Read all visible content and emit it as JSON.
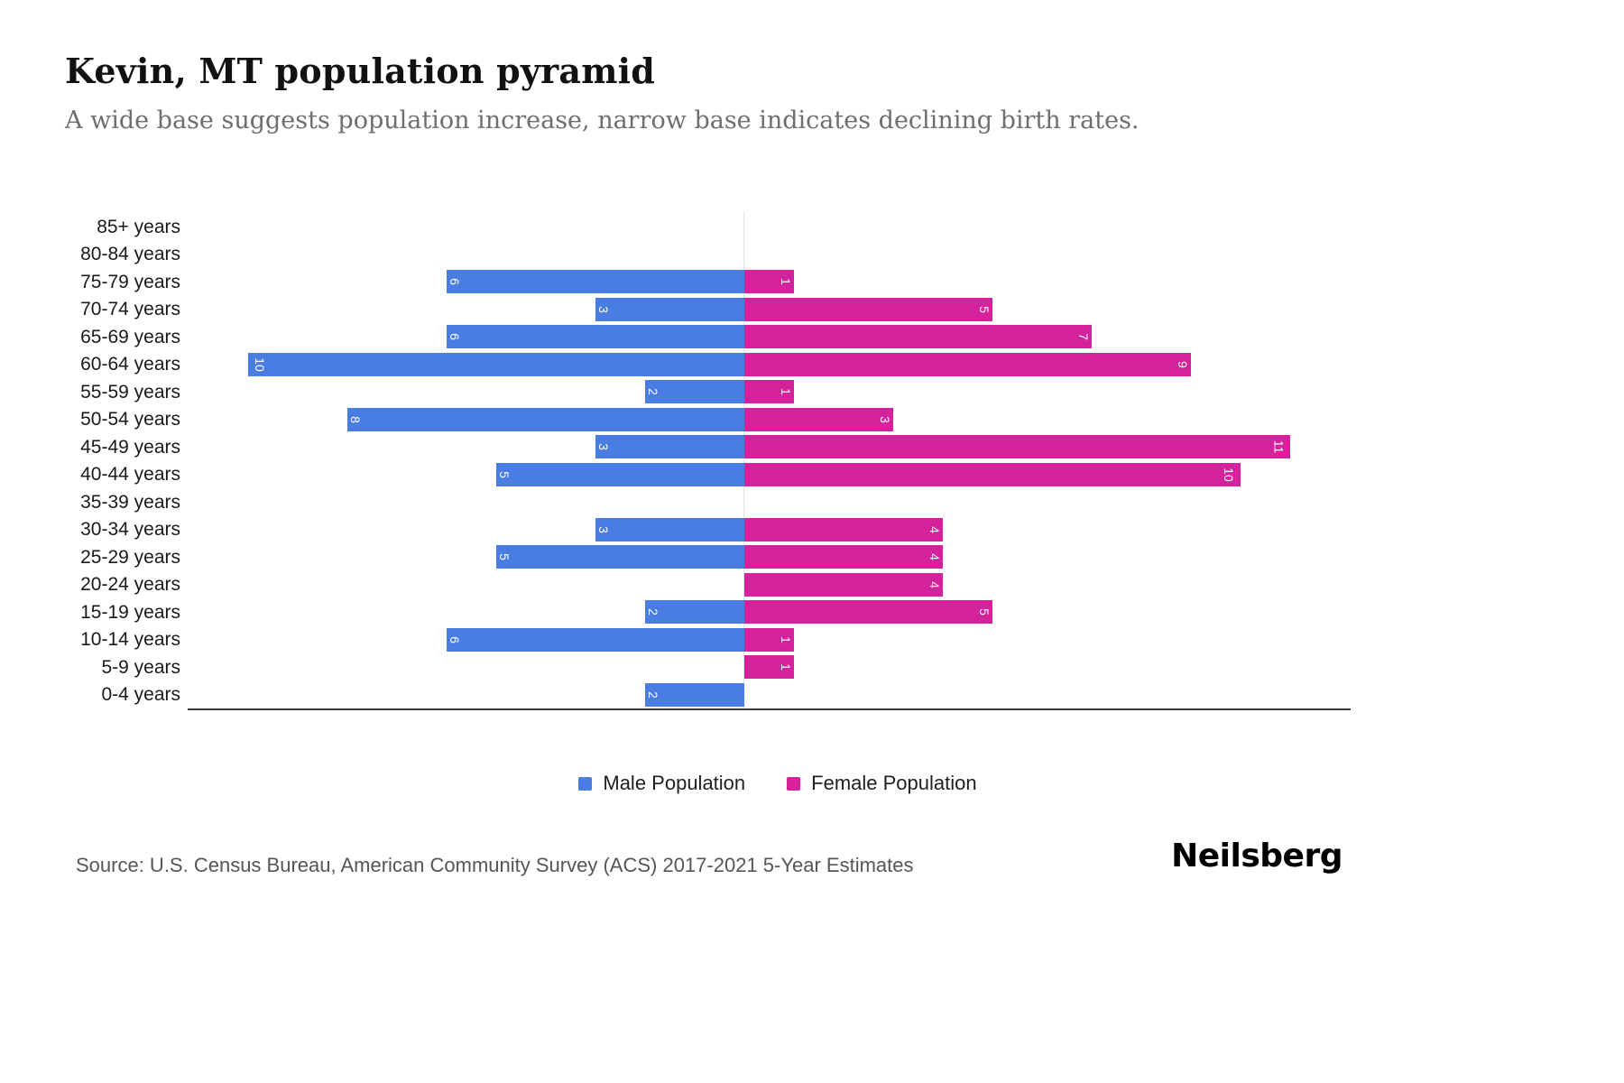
{
  "header": {
    "title": "Kevin, MT population pyramid",
    "subtitle": "A wide base suggests population increase, narrow base indicates declining birth rates."
  },
  "chart_data": {
    "type": "bar",
    "variant": "population-pyramid",
    "orientation": "horizontal",
    "categories": [
      "85+ years",
      "80-84 years",
      "75-79 years",
      "70-74 years",
      "65-69 years",
      "60-64 years",
      "55-59 years",
      "50-54 years",
      "45-49 years",
      "40-44 years",
      "35-39 years",
      "30-34 years",
      "25-29 years",
      "20-24 years",
      "15-19 years",
      "10-14 years",
      "5-9 years",
      "0-4 years"
    ],
    "series": [
      {
        "name": "Male Population",
        "color": "#4a7de2",
        "values": [
          0,
          0,
          6,
          3,
          6,
          10,
          2,
          8,
          3,
          5,
          0,
          3,
          5,
          0,
          2,
          6,
          0,
          2
        ]
      },
      {
        "name": "Female Population",
        "color": "#d4219c",
        "values": [
          0,
          0,
          1,
          5,
          7,
          9,
          1,
          3,
          11,
          10,
          0,
          4,
          4,
          4,
          5,
          1,
          1,
          0
        ]
      }
    ],
    "x_axis": {
      "male_max": 10,
      "female_max": 11,
      "gridline_at_zero": true
    },
    "legend_position": "bottom",
    "bar_value_labels": "rotated-90-white-inside-bar"
  },
  "footer": {
    "source": "Source: U.S. Census Bureau, American Community Survey (ACS) 2017-2021 5-Year Estimates",
    "brand": "Neilsberg"
  }
}
